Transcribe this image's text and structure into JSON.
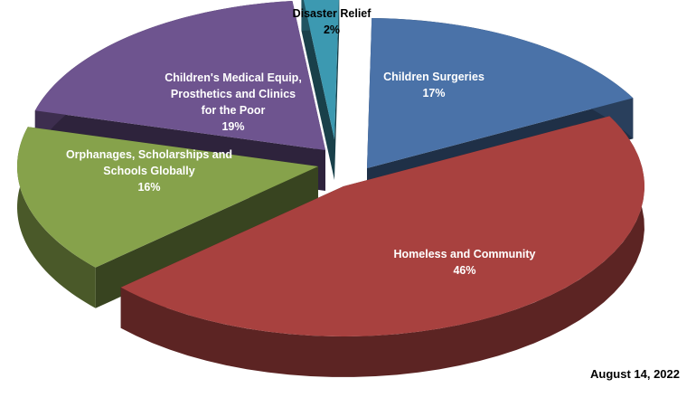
{
  "chart_data": {
    "type": "pie",
    "title": "",
    "slices": [
      {
        "label_lines": [
          "Children Surgeries"
        ],
        "percent": 17,
        "percent_label": "17%",
        "color": "#4A72A8",
        "label_color": "#ffffff"
      },
      {
        "label_lines": [
          "Homeless and Community"
        ],
        "percent": 46,
        "percent_label": "46%",
        "color": "#A8413F",
        "label_color": "#ffffff"
      },
      {
        "label_lines": [
          "Orphanages, Scholarships and",
          "Schools Globally"
        ],
        "percent": 16,
        "percent_label": "16%",
        "color": "#86A24B",
        "label_color": "#ffffff"
      },
      {
        "label_lines": [
          "Children's Medical Equip,",
          "Prosthetics and Clinics",
          "for the Poor"
        ],
        "percent": 19,
        "percent_label": "19%",
        "color": "#6E548F",
        "label_color": "#ffffff"
      },
      {
        "label_lines": [
          "Disaster Relief"
        ],
        "percent": 2,
        "percent_label": "2%",
        "color": "#3C99B1",
        "label_color": "#000000"
      }
    ]
  },
  "footer": {
    "date": "August 14, 2022"
  }
}
